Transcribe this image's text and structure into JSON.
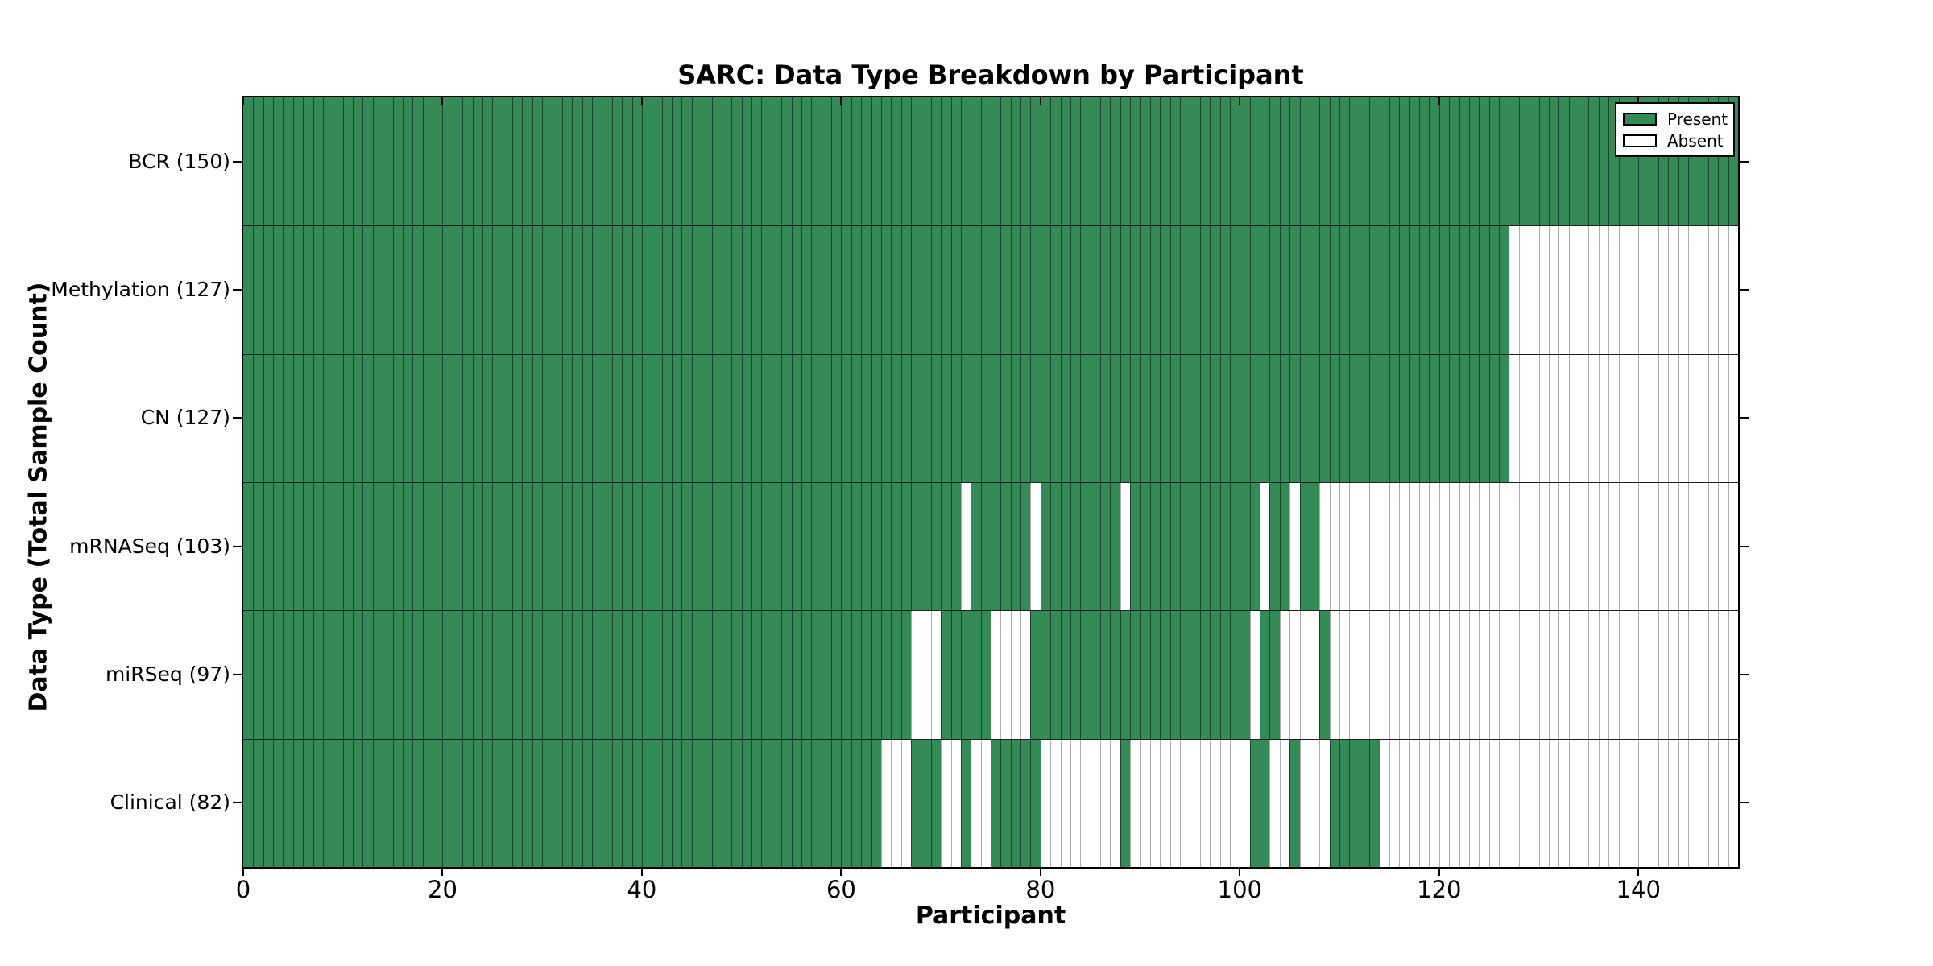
{
  "chart_data": {
    "type": "heatmap",
    "title": "SARC: Data Type Breakdown by Participant",
    "xlabel": "Participant",
    "ylabel": "Data Type (Total Sample Count)",
    "x_ticks": [
      0,
      20,
      40,
      60,
      80,
      100,
      120,
      140
    ],
    "x_range": [
      0,
      150
    ],
    "n_participants": 150,
    "grid": false,
    "legend_position": "upper right",
    "colors": {
      "present": "#348B58",
      "absent": "#FFFFFF",
      "present_cell_divider": "rgba(0,0,0,0.5)",
      "absent_cell_divider": "#ABABAB",
      "row_divider": "#1F1F1F",
      "axis": "#000000"
    },
    "legend": [
      {
        "label": "Present",
        "color": "#348B58"
      },
      {
        "label": "Absent",
        "color": "#FFFFFF"
      }
    ],
    "rows": [
      {
        "label": "BCR (150)",
        "data_type": "BCR",
        "total_sample_count": 150,
        "present_ranges": [
          [
            0,
            149
          ]
        ]
      },
      {
        "label": "Methylation (127)",
        "data_type": "Methylation",
        "total_sample_count": 127,
        "present_ranges": [
          [
            0,
            126
          ]
        ]
      },
      {
        "label": "CN (127)",
        "data_type": "CN",
        "total_sample_count": 127,
        "present_ranges": [
          [
            0,
            126
          ]
        ]
      },
      {
        "label": "mRNASeq (103)",
        "data_type": "mRNASeq",
        "total_sample_count": 103,
        "present_ranges": [
          [
            0,
            71
          ],
          [
            73,
            78
          ],
          [
            80,
            87
          ],
          [
            89,
            101
          ],
          [
            103,
            104
          ],
          [
            106,
            107
          ]
        ]
      },
      {
        "label": "miRSeq (97)",
        "data_type": "miRSeq",
        "total_sample_count": 97,
        "present_ranges": [
          [
            0,
            66
          ],
          [
            70,
            74
          ],
          [
            79,
            100
          ],
          [
            102,
            103
          ],
          [
            108,
            108
          ]
        ]
      },
      {
        "label": "Clinical (82)",
        "data_type": "Clinical",
        "total_sample_count": 82,
        "present_ranges": [
          [
            0,
            63
          ],
          [
            67,
            69
          ],
          [
            72,
            72
          ],
          [
            75,
            79
          ],
          [
            88,
            88
          ],
          [
            101,
            102
          ],
          [
            105,
            105
          ],
          [
            109,
            113
          ]
        ]
      }
    ]
  }
}
